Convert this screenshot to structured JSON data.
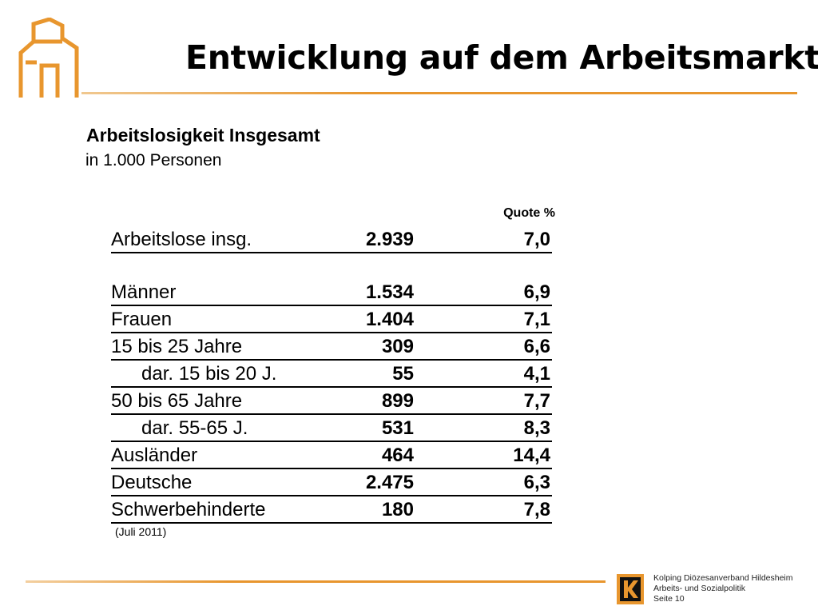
{
  "slide": {
    "title": "Entwicklung auf dem Arbeitsmarkt",
    "subhead": "Arbeitslosigkeit Insgesamt",
    "subline": "in 1.000 Personen",
    "accent_color": "#e8962e",
    "logo_icon": "house-outline-icon"
  },
  "table": {
    "quote_header": "Quote %",
    "rows": [
      {
        "label": "Arbeitslose insg.",
        "value": "2.939",
        "quote": "7,0"
      },
      {
        "label": "Männer",
        "value": "1.534",
        "quote": "6,9"
      },
      {
        "label": "Frauen",
        "value": "1.404",
        "quote": "7,1"
      },
      {
        "label": "15 bis 25 Jahre",
        "value": "309",
        "quote": "6,6"
      },
      {
        "label": "dar. 15 bis 20 J.",
        "value": "55",
        "quote": "4,1"
      },
      {
        "label": "50 bis 65 Jahre",
        "value": "899",
        "quote": "7,7"
      },
      {
        "label": "dar. 55-65 J.",
        "value": "531",
        "quote": "8,3"
      },
      {
        "label": "Ausländer",
        "value": "464",
        "quote": "14,4"
      },
      {
        "label": "Deutsche",
        "value": "2.475",
        "quote": "6,3"
      },
      {
        "label": "Schwerbehinderte",
        "value": "180",
        "quote": "7,8"
      }
    ],
    "footnote": "(Juli 2011)"
  },
  "footer": {
    "org": "Kolping Diözesanverband Hildesheim",
    "dept": "Arbeits- und Sozialpolitik",
    "page": "Seite 10",
    "logo_icon": "kolping-k-icon"
  }
}
